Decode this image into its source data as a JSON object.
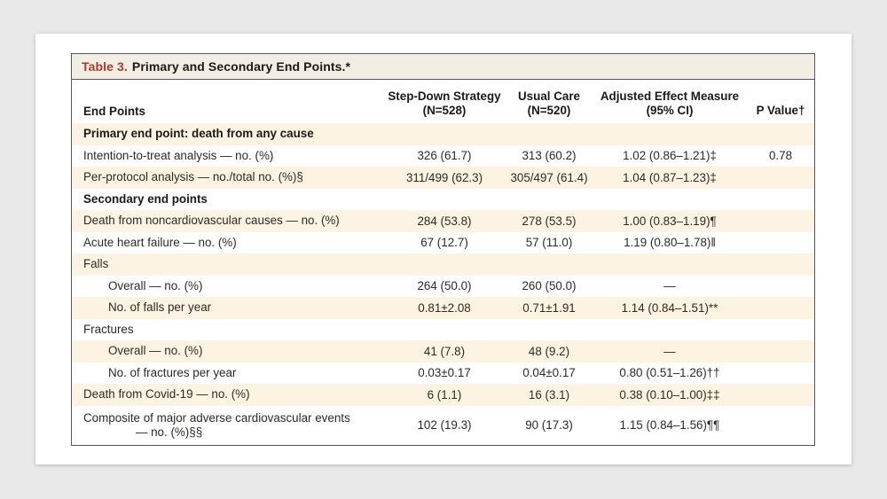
{
  "colors": {
    "page_background": "#e9e9e9",
    "card_background": "#ffffff",
    "table_border": "#56575b",
    "title_bar_background": "#f3eee3",
    "title_accent_red": "#ae3a2d",
    "shaded_row_background": "#fdf3e3",
    "text": "#2d2a26"
  },
  "table": {
    "title_prefix": "Table 3.",
    "title_rest": "Primary and Secondary End Points.*",
    "columns": {
      "endpoints": "End Points",
      "col2_line1": "Step-Down Strategy",
      "col2_line2": "(N=528)",
      "col3_line1": "Usual Care",
      "col3_line2": "(N=520)",
      "col4_line1": "Adjusted Effect Measure",
      "col4_line2": "(95% CI)",
      "col5": "P Value†"
    },
    "rows": [
      {
        "label": "Primary end point: death from any cause",
        "c2": "",
        "c3": "",
        "c4": "",
        "c5": ""
      },
      {
        "label": "Intention-to-treat analysis — no. (%)",
        "c2": "326 (61.7)",
        "c3": "313 (60.2)",
        "c4": "1.02 (0.86–1.21)‡",
        "c5": "0.78"
      },
      {
        "label": "Per-protocol analysis — no./total no. (%)§",
        "c2": "311/499 (62.3)",
        "c3": "305/497 (61.4)",
        "c4": "1.04 (0.87–1.23)‡",
        "c5": ""
      },
      {
        "label": "Secondary end points",
        "c2": "",
        "c3": "",
        "c4": "",
        "c5": ""
      },
      {
        "label": "Death from noncardiovascular causes — no. (%)",
        "c2": "284 (53.8)",
        "c3": "278 (53.5)",
        "c4": "1.00 (0.83–1.19)¶",
        "c5": ""
      },
      {
        "label": "Acute heart failure — no. (%)",
        "c2": "67 (12.7)",
        "c3": "57 (11.0)",
        "c4": "1.19 (0.80–1.78)‖",
        "c5": ""
      },
      {
        "label": "Falls",
        "c2": "",
        "c3": "",
        "c4": "",
        "c5": ""
      },
      {
        "label": "Overall — no. (%)",
        "c2": "264 (50.0)",
        "c3": "260 (50.0)",
        "c4": "—",
        "c5": ""
      },
      {
        "label": "No. of falls per year",
        "c2": "0.81±2.08",
        "c3": "0.71±1.91",
        "c4": "1.14 (0.84–1.51)**",
        "c5": ""
      },
      {
        "label": "Fractures",
        "c2": "",
        "c3": "",
        "c4": "",
        "c5": ""
      },
      {
        "label": "Overall — no. (%)",
        "c2": "41 (7.8)",
        "c3": "48 (9.2)",
        "c4": "—",
        "c5": ""
      },
      {
        "label": "No. of fractures per year",
        "c2": "0.03±0.17",
        "c3": "0.04±0.17",
        "c4": "0.80 (0.51–1.26)††",
        "c5": ""
      },
      {
        "label": "Death from Covid-19 — no. (%)",
        "c2": "6 (1.1)",
        "c3": "16 (3.1)",
        "c4": "0.38 (0.10–1.00)‡‡",
        "c5": ""
      },
      {
        "label_line1": "Composite of major adverse cardiovascular events",
        "label_line2": "— no. (%)§§",
        "c2": "102 (19.3)",
        "c3": "90 (17.3)",
        "c4": "1.15 (0.84–1.56)¶¶",
        "c5": ""
      }
    ]
  }
}
